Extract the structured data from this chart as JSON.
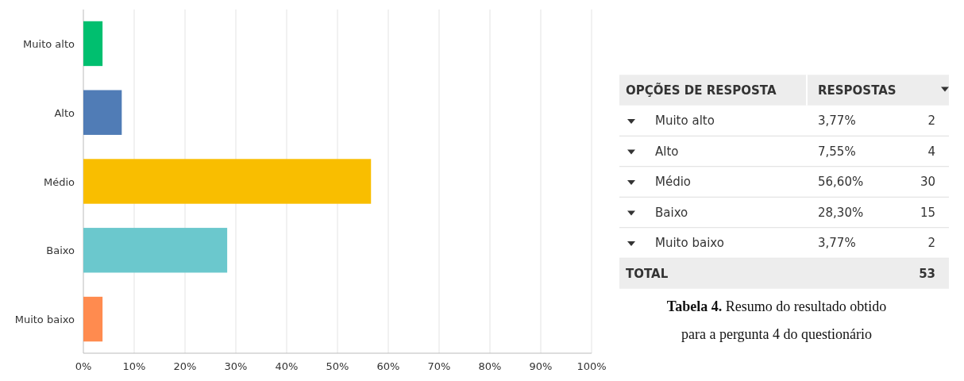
{
  "chart_data": [
    {
      "type": "bar",
      "orientation": "horizontal",
      "categories": [
        "Muito alto",
        "Alto",
        "Médio",
        "Baixo",
        "Muito baixo"
      ],
      "values": [
        3.77,
        7.55,
        56.6,
        28.3,
        3.77
      ],
      "colors": [
        "#00bf6f",
        "#507cb6",
        "#f9be00",
        "#6bc8cd",
        "#ff8b4f"
      ],
      "xlim": [
        0,
        100
      ],
      "xticks": [
        {
          "value": 0,
          "label": "0%"
        },
        {
          "value": 10,
          "label": "10%"
        },
        {
          "value": 20,
          "label": "20%"
        },
        {
          "value": 30,
          "label": "30%"
        },
        {
          "value": 40,
          "label": "40%"
        },
        {
          "value": 50,
          "label": "50%"
        },
        {
          "value": 60,
          "label": "60%"
        },
        {
          "value": 70,
          "label": "70%"
        },
        {
          "value": 80,
          "label": "80%"
        },
        {
          "value": 90,
          "label": "90%"
        },
        {
          "value": 100,
          "label": "100%"
        }
      ],
      "grid": "x"
    },
    {
      "type": "other",
      "categories": [
        "Muito alto",
        "Alto",
        "Médio",
        "Baixo",
        "Muito baixo"
      ],
      "data_labels": true,
      "series": [
        {
          "values": [
            3.77,
            7.55,
            56.6,
            28.3,
            3.77
          ],
          "value_labels": [
            "3,77%",
            "7,55%",
            "56,60%",
            "28,30%",
            "3,77%"
          ]
        },
        {
          "values": [
            2,
            4,
            30,
            15,
            2
          ]
        }
      ],
      "annotations": [
        "OPÇÕES DE RESPOSTA",
        "RESPOSTAS",
        "TOTAL",
        "53",
        "Tabela 4.",
        "Resumo do resultado obtido para a pergunta 4 do questionário"
      ]
    }
  ]
}
